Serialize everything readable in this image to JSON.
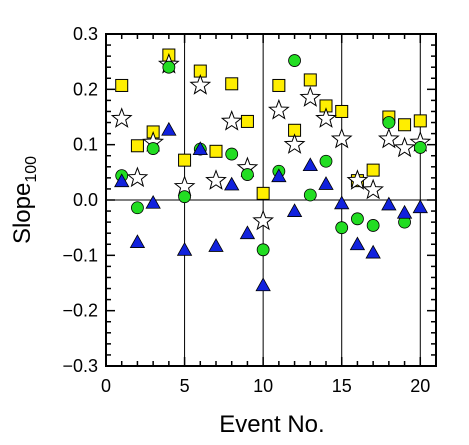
{
  "chart_data": {
    "type": "scatter",
    "title": "",
    "xlabel": "Event No.",
    "ylabel_main": "Slope",
    "ylabel_sub": "100",
    "xlim": [
      0,
      21
    ],
    "ylim": [
      -0.3,
      0.3
    ],
    "x_ticks": [
      0,
      5,
      10,
      15,
      20
    ],
    "x_tick_labels": [
      "0",
      "5",
      "10",
      "15",
      "20"
    ],
    "y_ticks": [
      -0.3,
      -0.2,
      -0.1,
      0.0,
      0.1,
      0.2,
      0.3
    ],
    "y_tick_labels": [
      "−0.3",
      "−0.2",
      "−0.1",
      "0.0",
      "0.1",
      "0.2",
      "0.3"
    ],
    "vertical_reference_lines": [
      5,
      10,
      15,
      20
    ],
    "horizontal_reference_lines": [
      0
    ],
    "grid": false,
    "legend": "none",
    "series": [
      {
        "marker": "square",
        "color": "#ffee00",
        "points": [
          [
            1,
            0.207
          ],
          [
            2,
            0.098
          ],
          [
            3,
            0.123
          ],
          [
            4,
            0.262
          ],
          [
            5,
            0.072
          ],
          [
            6,
            0.233
          ],
          [
            7,
            0.088
          ],
          [
            8,
            0.21
          ],
          [
            9,
            0.142
          ],
          [
            10,
            0.012
          ],
          [
            11,
            0.207
          ],
          [
            12,
            0.126
          ],
          [
            13,
            0.217
          ],
          [
            14,
            0.17
          ],
          [
            15,
            0.16
          ],
          [
            16,
            0.035
          ],
          [
            17,
            0.054
          ],
          [
            18,
            0.15
          ],
          [
            19,
            0.136
          ],
          [
            20,
            0.143
          ]
        ]
      },
      {
        "marker": "star",
        "color": "#ffffff",
        "points": [
          [
            1,
            0.147
          ],
          [
            2,
            0.04
          ],
          [
            3,
            0.104
          ],
          [
            4,
            0.245
          ],
          [
            5,
            0.024
          ],
          [
            6,
            0.207
          ],
          [
            7,
            0.035
          ],
          [
            8,
            0.142
          ],
          [
            9,
            0.058
          ],
          [
            10,
            -0.038
          ],
          [
            11,
            0.162
          ],
          [
            12,
            0.1
          ],
          [
            13,
            0.185
          ],
          [
            14,
            0.147
          ],
          [
            15,
            0.11
          ],
          [
            16,
            0.035
          ],
          [
            17,
            0.018
          ],
          [
            18,
            0.11
          ],
          [
            19,
            0.094
          ],
          [
            20,
            0.104
          ]
        ]
      },
      {
        "marker": "circle",
        "color": "#22dd22",
        "points": [
          [
            1,
            0.044
          ],
          [
            2,
            -0.014
          ],
          [
            3,
            0.093
          ],
          [
            4,
            0.24
          ],
          [
            5,
            0.006
          ],
          [
            6,
            0.092
          ],
          [
            8,
            0.083
          ],
          [
            9,
            0.046
          ],
          [
            10,
            -0.09
          ],
          [
            11,
            0.052
          ],
          [
            12,
            0.252
          ],
          [
            13,
            0.009
          ],
          [
            14,
            0.07
          ],
          [
            15,
            -0.05
          ],
          [
            16,
            -0.034
          ],
          [
            17,
            -0.046
          ],
          [
            18,
            0.14
          ],
          [
            19,
            -0.04
          ],
          [
            20,
            0.095
          ]
        ]
      },
      {
        "marker": "triangle",
        "color": "#1122dd",
        "points": [
          [
            1,
            0.034
          ],
          [
            2,
            -0.076
          ],
          [
            3,
            -0.005
          ],
          [
            4,
            0.127
          ],
          [
            5,
            -0.09
          ],
          [
            6,
            0.092
          ],
          [
            7,
            -0.083
          ],
          [
            8,
            0.028
          ],
          [
            9,
            -0.06
          ],
          [
            10,
            -0.154
          ],
          [
            11,
            0.043
          ],
          [
            12,
            -0.02
          ],
          [
            13,
            0.063
          ],
          [
            14,
            0.029
          ],
          [
            15,
            -0.006
          ],
          [
            16,
            -0.08
          ],
          [
            17,
            -0.095
          ],
          [
            18,
            -0.008
          ],
          [
            19,
            -0.023
          ],
          [
            20,
            -0.013
          ]
        ]
      }
    ]
  }
}
